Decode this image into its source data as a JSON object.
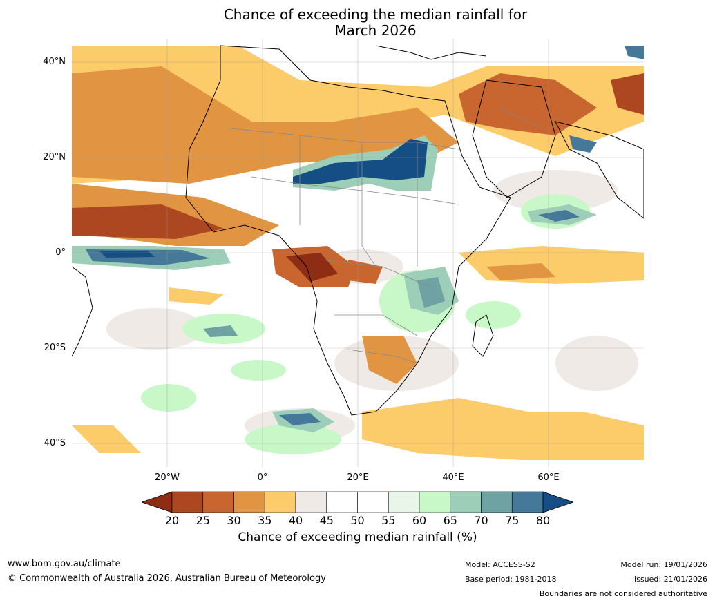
{
  "title_line1": "Chance of exceeding the median rainfall for",
  "title_line2": "March 2026",
  "lat_labels": [
    "40°N",
    "20°N",
    "0°",
    "20°S",
    "40°S"
  ],
  "lon_labels": [
    "20°W",
    "0°",
    "20°E",
    "40°E",
    "60°E"
  ],
  "colorbar": {
    "ticks": [
      "20",
      "25",
      "30",
      "35",
      "40",
      "45",
      "50",
      "55",
      "60",
      "65",
      "70",
      "75",
      "80"
    ],
    "colors": [
      "#8c2d14",
      "#ad4721",
      "#c9652f",
      "#e19542",
      "#fccb6a",
      "#efeae6",
      "#ffffff",
      "#ffffff",
      "#e8f5e8",
      "#c8f8c8",
      "#9dceb8",
      "#6fa3a3",
      "#46789a",
      "#154e84"
    ],
    "label": "Chance of exceeding median rainfall (%)"
  },
  "footer": {
    "website": "www.bom.gov.au/climate",
    "copyright": "© Commonwealth of Australia 2026, Australian Bureau of Meteorology",
    "model": "Model: ACCESS-S2",
    "base_period": "Base period: 1981-2018",
    "model_run": "Model run: 19/01/2026",
    "issued": "Issued: 21/01/2026",
    "disclaimer": "Boundaries are not considered authoritative"
  }
}
